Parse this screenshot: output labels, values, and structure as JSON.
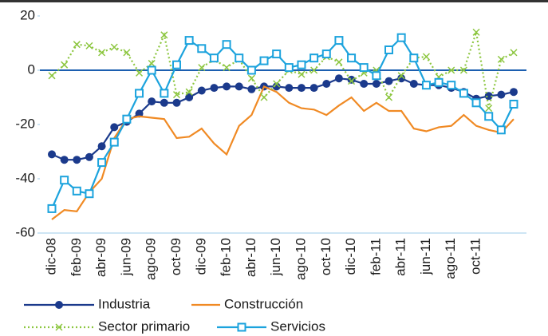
{
  "chart_data": {
    "type": "line",
    "categories": [
      "dic-08",
      null,
      "feb-09",
      null,
      "abr-09",
      null,
      "jun-09",
      null,
      "ago-09",
      null,
      "oct-09",
      null,
      "dic-09",
      null,
      "feb-10",
      null,
      "abr-10",
      null,
      "jun-10",
      null,
      "ago-10",
      null,
      "oct-10",
      null,
      "dic-10",
      null,
      "feb-11",
      null,
      "abr-11",
      null,
      "jun-11",
      null,
      "ago-11",
      null,
      "oct-11",
      null,
      null,
      null
    ],
    "series": [
      {
        "name": "Industria",
        "color": "#1b3a8c",
        "marker": "circle",
        "dash": "solid",
        "values": [
          -31,
          -33,
          -33,
          -32,
          -28,
          -21,
          -19,
          -16,
          -11.5,
          -12,
          -12,
          -10,
          -7.5,
          -6.5,
          -6,
          -6,
          -7,
          -6,
          -6,
          -6.5,
          -6.5,
          -6.5,
          -5,
          -3,
          -3.5,
          -5,
          -5,
          -4,
          -3,
          -5,
          -5.5,
          -5.5,
          -6.5,
          -8,
          -10.5,
          -9.5,
          -9,
          -8
        ]
      },
      {
        "name": "Construcción",
        "color": "#f08a24",
        "marker": "none",
        "dash": "solid",
        "values": [
          -55,
          -51.5,
          -52,
          -45,
          -40,
          -25,
          -18,
          -17,
          -17.5,
          -18,
          -25,
          -24.5,
          -21.5,
          -27,
          -31,
          -20.5,
          -16.5,
          -6,
          -8,
          -12,
          -14,
          -14.5,
          -16.5,
          -13,
          -10,
          -15,
          -12,
          -15,
          -15,
          -21.5,
          -22.5,
          -21,
          -20.5,
          -16.5,
          -20.5,
          -22,
          -23,
          -18
        ]
      },
      {
        "name": "Sector primario",
        "color": "#8cc63f",
        "marker": "cross",
        "dash": "dotted",
        "values": [
          -2,
          2,
          9.5,
          9,
          6.5,
          8.5,
          6.5,
          -1,
          2.5,
          13,
          -9,
          -8,
          1,
          4,
          1,
          4,
          -3,
          -10,
          -5,
          0,
          -1.5,
          0,
          5,
          3,
          -4,
          -1,
          0,
          -10,
          -2,
          4.5,
          5,
          -2.5,
          0,
          0,
          14,
          -14,
          4,
          6.5
        ]
      },
      {
        "name": "Servicios",
        "color": "#1ca3dd",
        "marker": "square",
        "dash": "solid",
        "values": [
          -51,
          -40.5,
          -44.5,
          -45.5,
          -34,
          -26.5,
          -18,
          -8.5,
          0,
          -8.5,
          2,
          11,
          8,
          4.5,
          9.5,
          4.5,
          0,
          3.5,
          6,
          1,
          2,
          4.5,
          6,
          11,
          4.5,
          1,
          -2,
          7.5,
          12,
          4.5,
          -5.5,
          -4.5,
          -5.5,
          -8.5,
          -12,
          -17,
          -22,
          -12.5
        ]
      }
    ],
    "ylim": [
      -60,
      20
    ],
    "yticks": [
      -60,
      -40,
      -20,
      0,
      20
    ],
    "grid": false,
    "legend": "bottom"
  }
}
